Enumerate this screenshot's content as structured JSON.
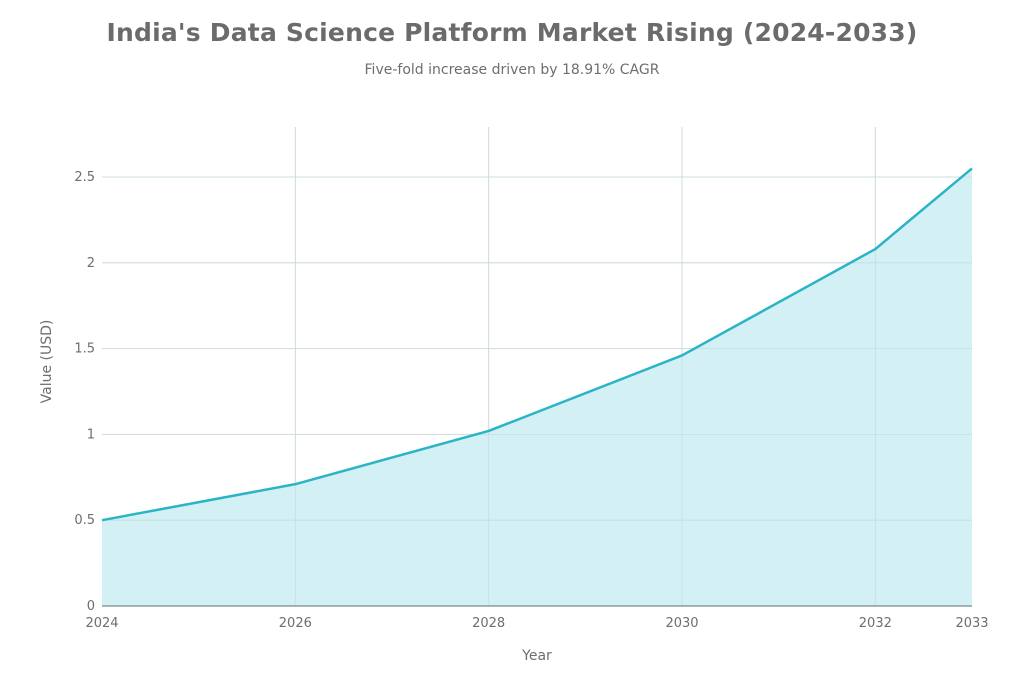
{
  "chart_data": {
    "type": "area",
    "title": "India's Data Science Platform Market Rising (2024-2033)",
    "subtitle": "Five-fold increase driven by 18.91% CAGR",
    "xlabel": "Year",
    "ylabel": "Value (USD)",
    "x": [
      2024,
      2026,
      2028,
      2030,
      2032,
      2033
    ],
    "values": [
      0.5,
      0.71,
      1.02,
      1.46,
      2.08,
      2.55
    ],
    "xlim": [
      2024,
      2033
    ],
    "ylim": [
      0,
      2.8
    ],
    "x_ticks": [
      "2024",
      "2026",
      "2028",
      "2030",
      "2032",
      "2033"
    ],
    "y_ticks": [
      0,
      0.5,
      1,
      1.5,
      2,
      2.5
    ],
    "y_tick_labels": [
      "0",
      "0.5",
      "1",
      "1.5",
      "2",
      "2.5"
    ],
    "grid": true,
    "colors": {
      "line": "#2ab4c6",
      "fill": "#d3f0f4",
      "grid": "#e3e3e3",
      "axis": "#7a8a8e"
    }
  }
}
